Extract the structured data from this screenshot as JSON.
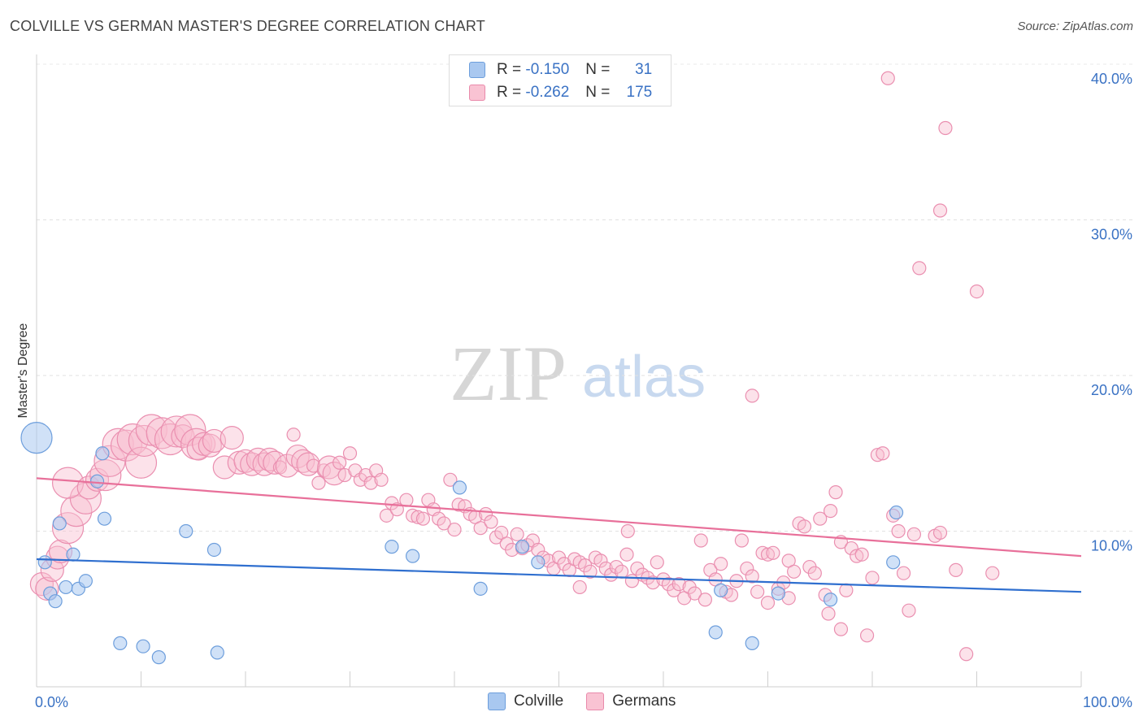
{
  "header": {
    "title": "COLVILLE VS GERMAN MASTER'S DEGREE CORRELATION CHART",
    "source": "Source: ZipAtlas.com"
  },
  "watermark": {
    "zip": "ZIP",
    "atlas": "atlas"
  },
  "legend": {
    "rows": [
      {
        "r_label": "R =",
        "r_value": "-0.150",
        "n_label": "N =",
        "n_value": "31",
        "color": "#a9c8f0",
        "border": "#6d9edc"
      },
      {
        "r_label": "R =",
        "r_value": "-0.262",
        "n_label": "N =",
        "n_value": "175",
        "color": "#f9c3d3",
        "border": "#e98aab"
      }
    ]
  },
  "bottom_legend": [
    {
      "label": "Colville",
      "color": "#a9c8f0",
      "border": "#6d9edc"
    },
    {
      "label": "Germans",
      "color": "#f9c3d3",
      "border": "#e98aab"
    }
  ],
  "colors": {
    "colville_fill": "rgba(169,200,240,0.55)",
    "colville_stroke": "#6d9edc",
    "colville_line": "#2f6fcf",
    "germans_fill": "rgba(249,190,208,0.45)",
    "germans_stroke": "#ea8fb0",
    "germans_line": "#e8709a"
  },
  "chart_data": {
    "type": "scatter",
    "title": "COLVILLE VS GERMAN MASTER'S DEGREE CORRELATION CHART",
    "xlabel": "",
    "ylabel": "Master's Degree",
    "xlim": [
      0,
      100
    ],
    "ylim": [
      0,
      40
    ],
    "x_tick_labels": [
      "0.0%",
      "100.0%"
    ],
    "y_ticks": [
      10,
      20,
      30,
      40
    ],
    "y_tick_labels": [
      "10.0%",
      "20.0%",
      "30.0%",
      "40.0%"
    ],
    "grid": true,
    "legend_position": "top-center",
    "series": [
      {
        "name": "Colville",
        "R": -0.15,
        "N": 31,
        "trend": {
          "x": [
            0,
            100
          ],
          "y": [
            8.2,
            6.1
          ]
        },
        "points": [
          [
            0,
            16,
            3
          ],
          [
            0.8,
            8,
            1
          ],
          [
            1.3,
            6,
            1
          ],
          [
            1.8,
            5.5,
            1
          ],
          [
            2.2,
            10.5,
            1
          ],
          [
            3.5,
            8.5,
            1
          ],
          [
            2.8,
            6.4,
            1
          ],
          [
            4,
            6.3,
            1
          ],
          [
            4.7,
            6.8,
            1
          ],
          [
            6.3,
            15,
            1
          ],
          [
            6.5,
            10.8,
            1
          ],
          [
            5.8,
            13.2,
            1
          ],
          [
            8,
            2.8,
            1
          ],
          [
            10.2,
            2.6,
            1
          ],
          [
            11.7,
            1.9,
            1
          ],
          [
            14.3,
            10,
            1
          ],
          [
            17,
            8.8,
            1
          ],
          [
            17.3,
            2.2,
            1
          ],
          [
            34,
            9,
            1
          ],
          [
            36,
            8.4,
            1
          ],
          [
            40.5,
            12.8,
            1
          ],
          [
            42.5,
            6.3,
            1
          ],
          [
            46.5,
            9,
            1
          ],
          [
            48,
            8,
            1
          ],
          [
            65,
            3.5,
            1
          ],
          [
            65.5,
            6.2,
            1
          ],
          [
            68.5,
            2.8,
            1
          ],
          [
            71,
            6,
            1
          ],
          [
            76,
            5.6,
            1
          ],
          [
            82,
            8,
            1
          ],
          [
            82.3,
            11.2,
            1
          ]
        ]
      },
      {
        "name": "Germans",
        "R": -0.262,
        "N": 175,
        "trend": {
          "x": [
            0,
            100
          ],
          "y": [
            13.4,
            8.4
          ]
        },
        "points": [
          [
            0.5,
            6.6,
            2
          ],
          [
            1,
            6.3,
            2
          ],
          [
            1.5,
            7.5,
            2
          ],
          [
            2,
            8.3,
            2
          ],
          [
            2.3,
            8.7,
            2
          ],
          [
            3,
            10.2,
            3
          ],
          [
            3.8,
            11.3,
            3
          ],
          [
            4.7,
            12.1,
            3
          ],
          [
            3,
            13.1,
            3
          ],
          [
            5,
            12.8,
            2
          ],
          [
            5.8,
            13.3,
            2
          ],
          [
            6.6,
            13.6,
            3
          ],
          [
            7,
            14.5,
            3
          ],
          [
            7.8,
            15.6,
            3
          ],
          [
            8.6,
            15.5,
            3
          ],
          [
            9.2,
            15.9,
            3
          ],
          [
            10,
            14.4,
            3
          ],
          [
            10.3,
            15.8,
            3
          ],
          [
            11,
            16.5,
            3
          ],
          [
            12,
            16.3,
            3
          ],
          [
            12.8,
            15.9,
            3
          ],
          [
            13.4,
            16.4,
            3
          ],
          [
            14,
            16.1,
            2
          ],
          [
            14.7,
            16.5,
            3
          ],
          [
            15.3,
            15.6,
            3
          ],
          [
            15.5,
            15.3,
            2
          ],
          [
            16,
            15.6,
            2
          ],
          [
            16.6,
            15.5,
            2
          ],
          [
            17,
            15.8,
            2
          ],
          [
            18,
            14.1,
            2
          ],
          [
            18.7,
            16,
            2
          ],
          [
            19.4,
            14.4,
            2
          ],
          [
            20,
            14.5,
            2
          ],
          [
            20.6,
            14.3,
            2
          ],
          [
            21.2,
            14.6,
            2
          ],
          [
            21.8,
            14.3,
            2
          ],
          [
            22.3,
            14.6,
            2
          ],
          [
            22.8,
            14.4,
            2
          ],
          [
            23.3,
            14.1,
            1
          ],
          [
            24,
            14.2,
            2
          ],
          [
            24.6,
            16.2,
            1
          ],
          [
            25,
            14.8,
            2
          ],
          [
            25.5,
            14.5,
            2
          ],
          [
            26,
            14.3,
            2
          ],
          [
            26.5,
            14.2,
            1
          ],
          [
            27,
            13.1,
            1
          ],
          [
            27.5,
            13.9,
            1
          ],
          [
            28,
            14.1,
            2
          ],
          [
            28.5,
            13.7,
            2
          ],
          [
            29,
            14.4,
            1
          ],
          [
            29.5,
            13.6,
            1
          ],
          [
            30,
            15,
            1
          ],
          [
            30.5,
            13.9,
            1
          ],
          [
            31,
            13.3,
            1
          ],
          [
            31.5,
            13.6,
            1
          ],
          [
            32,
            13.1,
            1
          ],
          [
            32.5,
            13.9,
            1
          ],
          [
            33,
            13.3,
            1
          ],
          [
            33.5,
            11,
            1
          ],
          [
            34,
            11.8,
            1
          ],
          [
            34.5,
            11.4,
            1
          ],
          [
            35.4,
            12,
            1
          ],
          [
            36,
            11,
            1
          ],
          [
            36.5,
            10.9,
            1
          ],
          [
            37,
            10.8,
            1
          ],
          [
            37.5,
            12,
            1
          ],
          [
            38,
            11.4,
            1
          ],
          [
            38.5,
            10.8,
            1
          ],
          [
            39,
            10.5,
            1
          ],
          [
            39.6,
            13.3,
            1
          ],
          [
            40,
            10.1,
            1
          ],
          [
            40.4,
            11.7,
            1
          ],
          [
            41,
            11.6,
            1
          ],
          [
            41.5,
            11.1,
            1
          ],
          [
            42,
            10.9,
            1
          ],
          [
            42.5,
            10.2,
            1
          ],
          [
            43,
            11.1,
            1
          ],
          [
            43.5,
            10.6,
            1
          ],
          [
            44,
            9.6,
            1
          ],
          [
            44.5,
            9.9,
            1
          ],
          [
            45,
            9.2,
            1
          ],
          [
            45.5,
            8.8,
            1
          ],
          [
            46,
            9.8,
            1
          ],
          [
            46.5,
            8.9,
            1
          ],
          [
            47,
            9.1,
            1
          ],
          [
            47.5,
            9.4,
            1
          ],
          [
            48,
            8.8,
            1
          ],
          [
            48.5,
            8.3,
            1
          ],
          [
            49,
            8.1,
            1
          ],
          [
            49.5,
            7.6,
            1
          ],
          [
            50,
            8.3,
            1
          ],
          [
            50.5,
            7.9,
            1
          ],
          [
            51,
            7.5,
            1
          ],
          [
            51.5,
            8.2,
            1
          ],
          [
            52,
            8,
            1
          ],
          [
            52.5,
            7.8,
            1
          ],
          [
            53,
            7.4,
            1
          ],
          [
            53.5,
            8.3,
            1
          ],
          [
            54,
            8.1,
            1
          ],
          [
            54.5,
            7.6,
            1
          ],
          [
            55,
            7.2,
            1
          ],
          [
            55.5,
            7.7,
            1
          ],
          [
            56,
            7.4,
            1
          ],
          [
            56.6,
            10,
            1
          ],
          [
            57,
            6.8,
            1
          ],
          [
            57.5,
            7.6,
            1
          ],
          [
            58,
            7.2,
            1
          ],
          [
            58.5,
            7,
            1
          ],
          [
            59,
            6.7,
            1
          ],
          [
            59.4,
            8,
            1
          ],
          [
            60,
            6.9,
            1
          ],
          [
            60.5,
            6.6,
            1
          ],
          [
            61,
            6.2,
            1
          ],
          [
            61.5,
            6.6,
            1
          ],
          [
            62,
            5.7,
            1
          ],
          [
            62.5,
            6.4,
            1
          ],
          [
            63,
            6,
            1
          ],
          [
            63.6,
            9.4,
            1
          ],
          [
            64,
            5.6,
            1
          ],
          [
            64.5,
            7.5,
            1
          ],
          [
            65,
            6.9,
            1
          ],
          [
            65.5,
            7.9,
            1
          ],
          [
            66,
            6.1,
            1
          ],
          [
            66.5,
            5.9,
            1
          ],
          [
            67,
            6.8,
            1
          ],
          [
            67.5,
            9.4,
            1
          ],
          [
            68,
            7.6,
            1
          ],
          [
            68.5,
            7.1,
            1
          ],
          [
            69,
            6.1,
            1
          ],
          [
            69.5,
            8.6,
            1
          ],
          [
            70,
            8.5,
            1
          ],
          [
            70.5,
            8.6,
            1
          ],
          [
            71,
            6.3,
            1
          ],
          [
            71.5,
            6.7,
            1
          ],
          [
            72,
            8.1,
            1
          ],
          [
            72.5,
            7.4,
            1
          ],
          [
            73,
            10.5,
            1
          ],
          [
            73.5,
            10.3,
            1
          ],
          [
            74,
            7.7,
            1
          ],
          [
            74.5,
            7.3,
            1
          ],
          [
            75,
            10.8,
            1
          ],
          [
            75.5,
            5.9,
            1
          ],
          [
            76,
            11.3,
            1
          ],
          [
            76.5,
            12.5,
            1
          ],
          [
            77,
            9.3,
            1
          ],
          [
            77.5,
            6.2,
            1
          ],
          [
            78,
            8.9,
            1
          ],
          [
            78.5,
            8.4,
            1
          ],
          [
            79,
            8.5,
            1
          ],
          [
            80,
            7,
            1
          ],
          [
            80.5,
            14.9,
            1
          ],
          [
            81,
            15,
            1
          ],
          [
            82,
            11,
            1
          ],
          [
            82.5,
            10,
            1
          ],
          [
            83,
            7.3,
            1
          ],
          [
            83.5,
            4.9,
            1
          ],
          [
            84,
            9.8,
            1
          ],
          [
            86,
            9.7,
            1
          ],
          [
            86.5,
            9.9,
            1
          ],
          [
            88,
            7.5,
            1
          ],
          [
            89,
            2.1,
            1
          ],
          [
            79.5,
            3.3,
            1
          ],
          [
            77,
            3.7,
            1
          ],
          [
            72,
            5.7,
            1
          ],
          [
            56.5,
            8.5,
            1
          ],
          [
            52,
            6.4,
            1
          ],
          [
            68.5,
            18.7,
            1
          ],
          [
            81.5,
            39.1,
            1
          ],
          [
            87,
            35.9,
            1
          ],
          [
            86.5,
            30.6,
            1
          ],
          [
            84.5,
            26.9,
            1
          ],
          [
            90,
            25.4,
            1
          ],
          [
            91.5,
            7.3,
            1
          ],
          [
            70,
            5.4,
            1
          ],
          [
            75.8,
            4.7,
            1
          ]
        ]
      }
    ]
  }
}
